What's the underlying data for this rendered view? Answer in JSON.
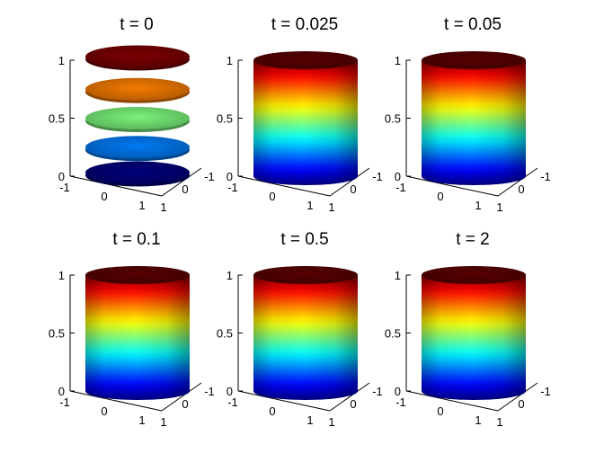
{
  "colormap": "jet",
  "chart_data": [
    {
      "type": "surface3d",
      "title": "t = 0",
      "zlim": [
        0,
        1
      ],
      "xlim": [
        -1,
        1
      ],
      "ylim": [
        -1,
        1
      ],
      "z_ticks": [
        "0",
        "0.5",
        "1"
      ],
      "x_ticks": [
        "-1",
        "0",
        "1"
      ],
      "y_ticks": [
        "1",
        "0",
        "-1"
      ],
      "shape": "stacked-bands",
      "band_levels": [
        0,
        0.25,
        0.5,
        0.75,
        1
      ]
    },
    {
      "type": "surface3d",
      "title": "t = 0.025",
      "zlim": [
        0,
        1
      ],
      "xlim": [
        -1,
        1
      ],
      "ylim": [
        -1,
        1
      ],
      "z_ticks": [
        "0",
        "0.5",
        "1"
      ],
      "x_ticks": [
        "-1",
        "0",
        "1"
      ],
      "y_ticks": [
        "1",
        "0",
        "-1"
      ],
      "shape": "cylinder"
    },
    {
      "type": "surface3d",
      "title": "t = 0.05",
      "zlim": [
        0,
        1
      ],
      "xlim": [
        -1,
        1
      ],
      "ylim": [
        -1,
        1
      ],
      "z_ticks": [
        "0",
        "0.5",
        "1"
      ],
      "x_ticks": [
        "-1",
        "0",
        "1"
      ],
      "y_ticks": [
        "1",
        "0",
        "-1"
      ],
      "shape": "cylinder"
    },
    {
      "type": "surface3d",
      "title": "t = 0.1",
      "zlim": [
        0,
        1
      ],
      "xlim": [
        -1,
        1
      ],
      "ylim": [
        -1,
        1
      ],
      "z_ticks": [
        "0",
        "0.5",
        "1"
      ],
      "x_ticks": [
        "-1",
        "0",
        "1"
      ],
      "y_ticks": [
        "1",
        "0",
        "-1"
      ],
      "shape": "cylinder"
    },
    {
      "type": "surface3d",
      "title": "t = 0.5",
      "zlim": [
        0,
        1
      ],
      "xlim": [
        -1,
        1
      ],
      "ylim": [
        -1,
        1
      ],
      "z_ticks": [
        "0",
        "0.5",
        "1"
      ],
      "x_ticks": [
        "-1",
        "0",
        "1"
      ],
      "y_ticks": [
        "1",
        "0",
        "-1"
      ],
      "shape": "cylinder"
    },
    {
      "type": "surface3d",
      "title": "t = 2",
      "zlim": [
        0,
        1
      ],
      "xlim": [
        -1,
        1
      ],
      "ylim": [
        -1,
        1
      ],
      "z_ticks": [
        "0",
        "0.5",
        "1"
      ],
      "x_ticks": [
        "-1",
        "0",
        "1"
      ],
      "y_ticks": [
        "1",
        "0",
        "-1"
      ],
      "shape": "cylinder"
    }
  ]
}
